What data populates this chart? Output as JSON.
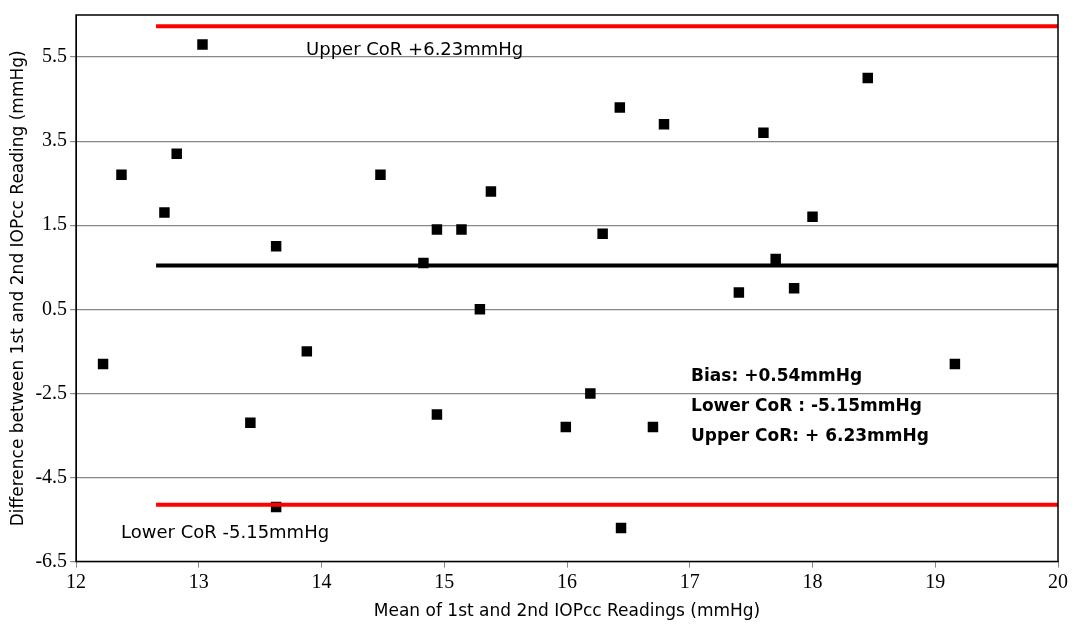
{
  "chart_data": {
    "type": "scatter",
    "xlabel": "Mean of 1st and 2nd IOPcc Readings (mmHg)",
    "ylabel": "Difference between 1st and 2nd IOPcc Reading (mmHg)",
    "xlim": [
      12,
      20
    ],
    "xticks": [
      12,
      13,
      14,
      15,
      16,
      17,
      18,
      19,
      20
    ],
    "ylim": [
      -6.5,
      6.5
    ],
    "yticks": [
      -6.5,
      -4.5,
      -2.5,
      {
        "value": -0.5,
        "label": "0.5"
      },
      1.5,
      3.5,
      5.5
    ],
    "grid": "y",
    "marker": "square",
    "legend": false,
    "series": [
      {
        "color": "#000000",
        "x": [
          12.22,
          12.37,
          12.72,
          12.82,
          13.03,
          13.42,
          13.63,
          13.63,
          13.88,
          14.48,
          14.83,
          14.94,
          14.94,
          15.14,
          15.29,
          15.38,
          15.99,
          16.19,
          16.29,
          16.43,
          16.44,
          16.7,
          16.79,
          17.4,
          17.6,
          17.7,
          17.85,
          18.0,
          18.45,
          19.16
        ],
        "values": [
          -1.8,
          2.7,
          1.8,
          3.2,
          5.8,
          -3.2,
          1.0,
          -5.2,
          -1.5,
          2.7,
          0.6,
          1.4,
          -3.0,
          1.4,
          -0.5,
          2.3,
          -3.3,
          -2.5,
          1.3,
          4.3,
          -5.7,
          -3.3,
          3.9,
          -0.1,
          3.7,
          0.7,
          0.0,
          1.7,
          5.0,
          -1.8
        ]
      }
    ],
    "ref_lines": [
      {
        "axis": "y",
        "value": 0.54,
        "color": "#000000"
      },
      {
        "axis": "y",
        "value": 6.23,
        "color": "#ff0000",
        "label": "Upper CoR +6.23mmHg"
      },
      {
        "axis": "y",
        "value": -5.15,
        "color": "#ff0000",
        "label": "Lower CoR -5.15mmHg"
      }
    ],
    "annotations": [
      "Bias: +0.54mmHg",
      "Lower CoR : -5.15mmHg",
      "Upper CoR: + 6.23mmHg"
    ]
  }
}
